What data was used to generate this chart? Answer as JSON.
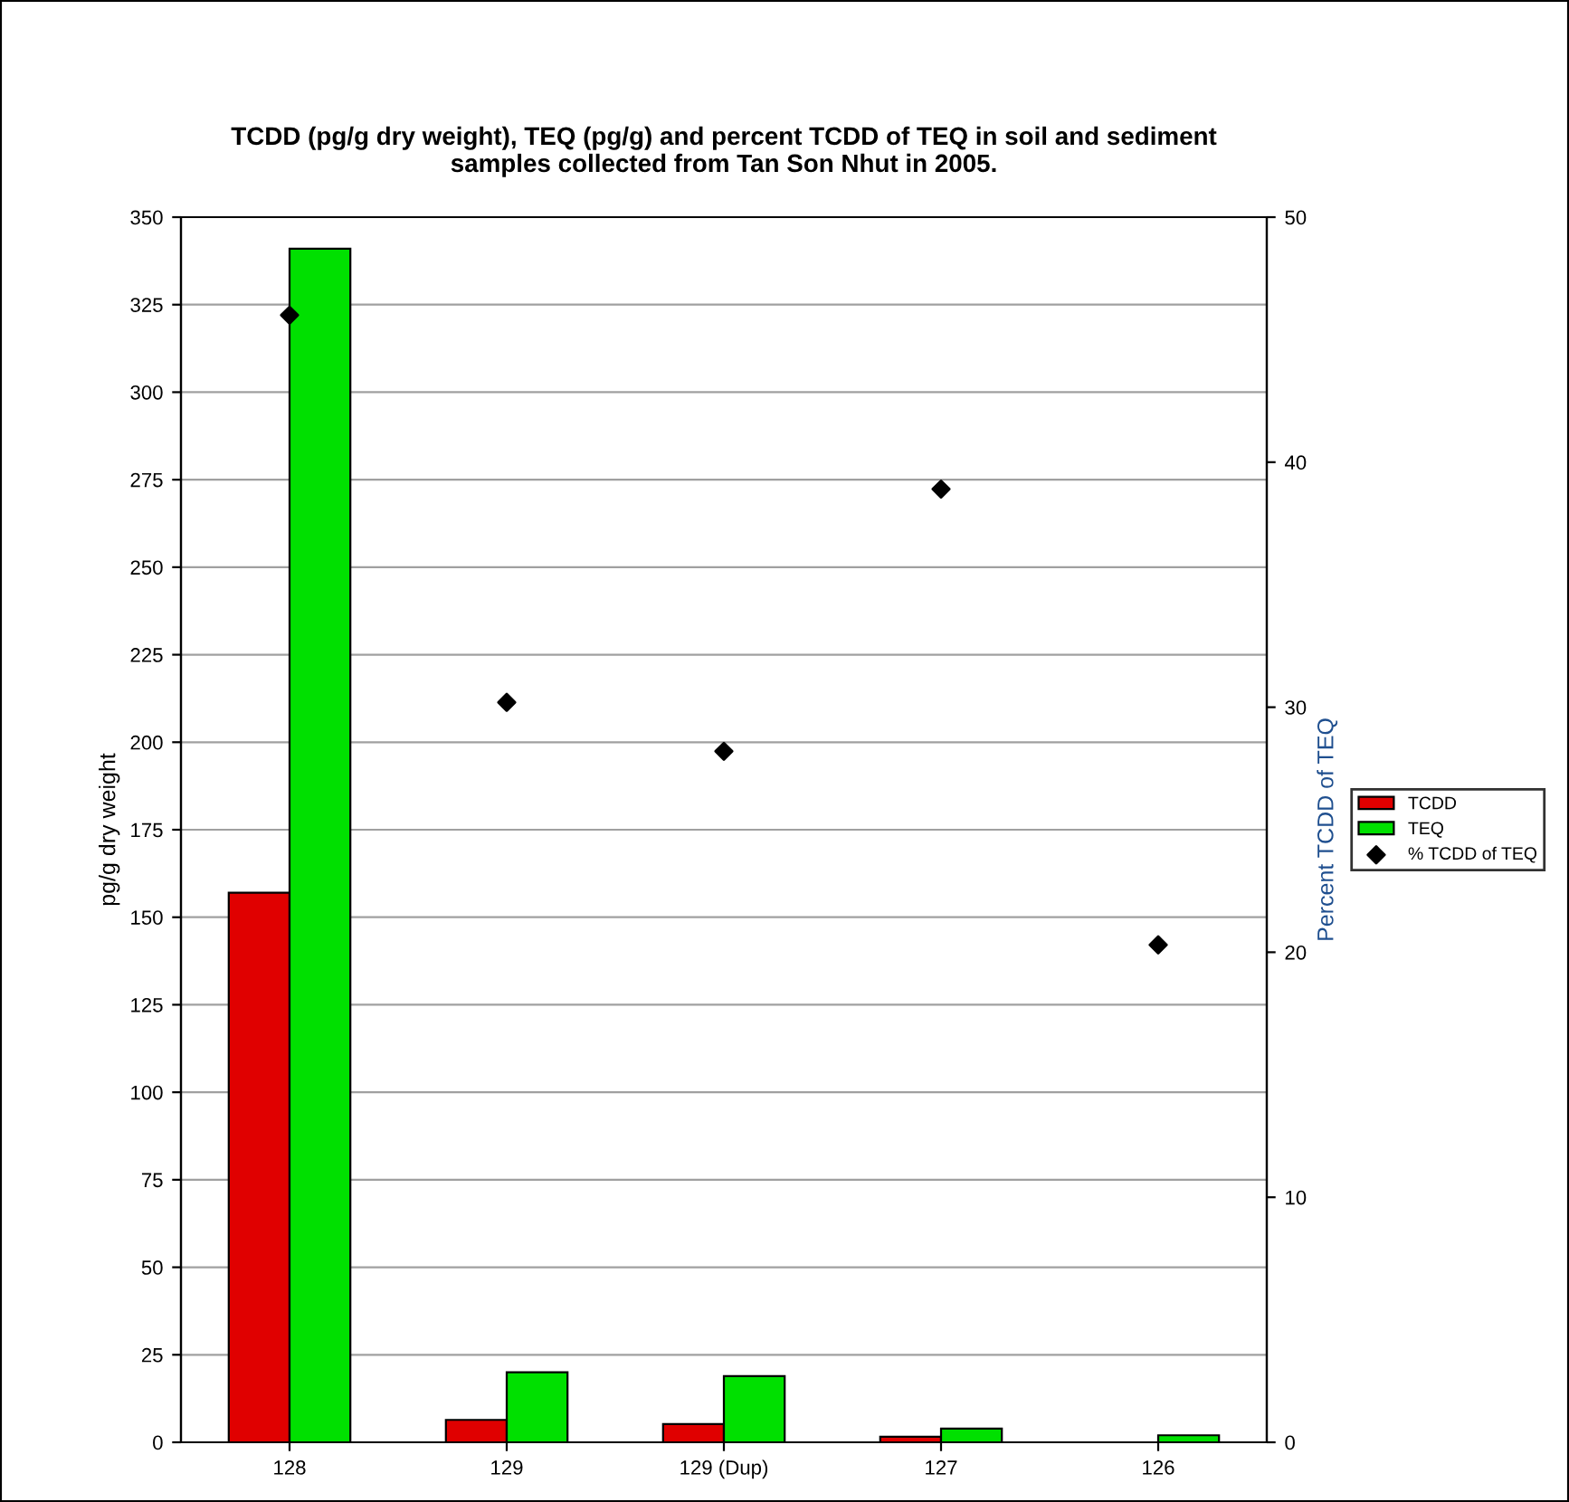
{
  "chart_data": {
    "type": "bar",
    "title": "TCDD (pg/g dry weight), TEQ (pg/g) and percent TCDD of TEQ in soil and sediment\nsamples collected from Tan Son Nhut in 2005.",
    "categories": [
      "128",
      "129",
      "129 (Dup)",
      "127",
      "126"
    ],
    "series": [
      {
        "name": "TCDD",
        "color": "#e00000",
        "values": [
          157,
          6.4,
          5.2,
          1.6,
          null
        ]
      },
      {
        "name": "TEQ",
        "color": "#00e000",
        "values": [
          341,
          20,
          18.9,
          3.9,
          2.0
        ]
      },
      {
        "name": "% TCDD of TEQ",
        "type": "scatter",
        "axis": "y2",
        "color": "#000000",
        "marker": "diamond",
        "values": [
          46,
          30.2,
          28.2,
          38.9,
          20.3
        ]
      }
    ],
    "ylabel": "pg/g dry weight",
    "y2label": "Percent TCDD of TEQ",
    "ylim": [
      0,
      350
    ],
    "yticks": [
      0,
      25,
      50,
      75,
      100,
      125,
      150,
      175,
      200,
      225,
      250,
      275,
      300,
      325,
      350
    ],
    "y2lim": [
      0,
      50
    ],
    "y2ticks": [
      0,
      10,
      20,
      30,
      40,
      50
    ],
    "grid": "y",
    "legend": "right"
  }
}
